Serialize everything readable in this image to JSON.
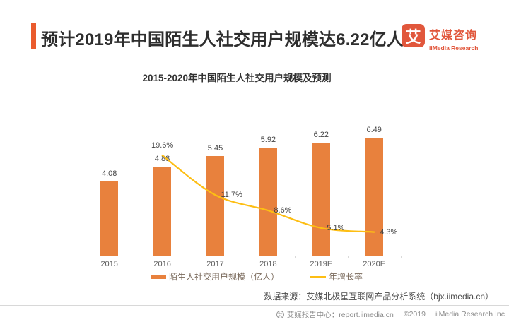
{
  "header": {
    "title": "预计2019年中国陌生人社交用户规模达6.22亿人",
    "logo": {
      "glyph": "艾",
      "name_cn": "艾媒咨询",
      "name_en": "iiMedia Research"
    }
  },
  "chart_data": {
    "type": "bar+line",
    "title": "2015-2020年中国陌生人社交用户规模及预测",
    "categories": [
      "2015",
      "2016",
      "2017",
      "2018",
      "2019E",
      "2020E"
    ],
    "series": [
      {
        "name": "陌生人社交用户规模（亿人）",
        "type": "bar",
        "color": "#E8813D",
        "values": [
          4.08,
          4.88,
          5.45,
          5.92,
          6.22,
          6.49
        ],
        "labels": [
          "4.08",
          "4.88",
          "5.45",
          "5.92",
          "6.22",
          "6.49"
        ]
      },
      {
        "name": "年增长率",
        "type": "line",
        "color": "#FDBE14",
        "values": [
          null,
          19.6,
          11.7,
          8.6,
          5.1,
          4.3
        ],
        "labels": [
          null,
          "19.6%",
          "11.7%",
          "8.6%",
          "5.1%",
          "4.3%"
        ]
      }
    ],
    "xlabel": "",
    "ylabel": "",
    "ylim_left": [
      0,
      7
    ],
    "ylim_right_percent": [
      0,
      25
    ],
    "grid": false,
    "axes_lines_visible": "x-only",
    "legend_position": "bottom"
  },
  "source": "数据来源：艾媒北极星互联网产品分析系统（bjx.iimedia.cn）",
  "footer": {
    "badge_glyph": "艾",
    "report_center": "艾媒报告中心：report.iimedia.cn",
    "copyright": "©2019",
    "company": "iiMedia Research Inc"
  },
  "colors": {
    "accent": "#EA5B2D",
    "logo": "#E1573C",
    "bar": "#E8813D",
    "line": "#FDBE14"
  }
}
